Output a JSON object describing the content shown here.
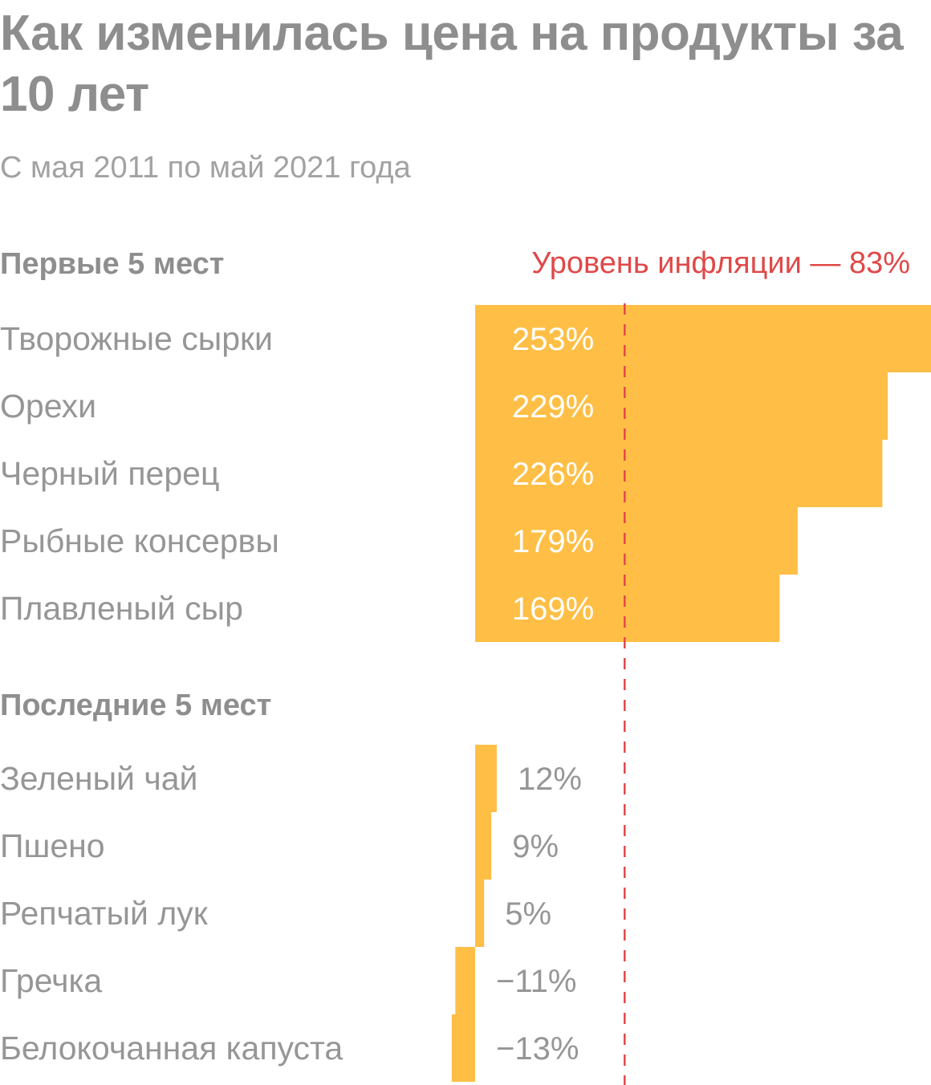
{
  "chart_data": {
    "type": "bar",
    "orientation": "horizontal",
    "title": "Как изменилась цена на продукты за 10 лет",
    "subtitle": "С мая 2011 по май 2021 года",
    "unit": "%",
    "bar_color": "#FFBF46",
    "reference_line": {
      "label": "Уровень инфляции — 83%",
      "value": 83,
      "color": "#E04848",
      "style": "dashed"
    },
    "groups": [
      {
        "label": "Первые 5 мест",
        "categories": [
          "Творожные сырки",
          "Орехи",
          "Черный перец",
          "Рыбные консервы",
          "Плавленый сыр"
        ],
        "values": [
          253,
          229,
          226,
          179,
          169
        ],
        "value_labels": [
          "253%",
          "229%",
          "226%",
          "179%",
          "169%"
        ]
      },
      {
        "label": "Последние 5 мест",
        "categories": [
          "Зеленый чай",
          "Пшено",
          "Репчатый лук",
          "Гречка",
          "Белокочанная капуста"
        ],
        "values": [
          12,
          9,
          5,
          -11,
          -13
        ],
        "value_labels": [
          "12%",
          "9%",
          "5%",
          "−11%",
          "−13%"
        ]
      }
    ]
  }
}
